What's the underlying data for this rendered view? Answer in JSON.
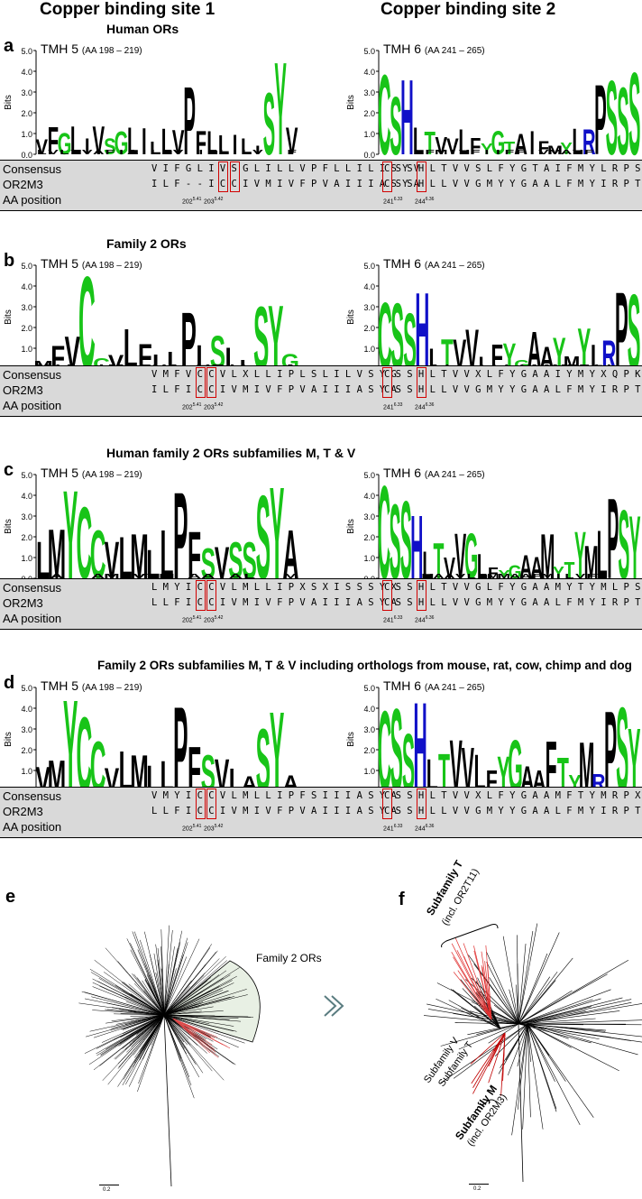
{
  "headers": {
    "left": "Copper binding site 1",
    "right": "Copper binding site 2"
  },
  "common": {
    "tmh5_label": "TMH 5",
    "tmh5_range": "(AA 198 – 219)",
    "tmh6_label": "TMH 6",
    "tmh6_range": "(AA 241 – 265)",
    "y_axis_title": "Bits",
    "y_ticks": [
      "5.0",
      "4.0",
      "3.0",
      "2.0",
      "1.0",
      "0.0"
    ],
    "row_labels": [
      "Consensus",
      "OR2M3",
      "AA position"
    ],
    "pos202": "202",
    "sup202": "5.41",
    "pos203": "203",
    "sup203": "5.42",
    "pos241": "241",
    "sup241": "6.33",
    "pos244": "244",
    "sup244": "6.36"
  },
  "panels": [
    {
      "letter": "a",
      "title": "Human ORs",
      "consensus5": "V I F G L I V S G L I L L V P F L L I L I S Y V",
      "or2m3_5": "I L F - - I C C I V M I V F P V A I I I A S Y A",
      "consensus6": "C S S H L T V V S L F Y G T A I F M Y L R P S S S",
      "or2m3_6": "C S S H L L V V G M Y Y G A A L F M Y I R P T S D",
      "tmh5_logo": "V F G L I V S G L I L L V P F L L I L I S Y V",
      "tmh6_logo": "C S H L T V V L F Y G T A I F M Y L R P S S S"
    },
    {
      "letter": "b",
      "title": "Family 2 ORs",
      "consensus5": "V M F V C C V L X L L I P L S L I L V S Y G",
      "or2m3_5": "I L F I C C I V M I V F P V A I I I A S Y A",
      "consensus6": "C S S H L T V V X L F Y G A A I Y M Y X Q P K S Y",
      "or2m3_6": "C S S H L L V V G M Y Y G A A L F M Y I R P T S D",
      "tmh5_logo": "M F V C C V L F L L P L S L L S Y G",
      "tmh6_logo": "C S S H L T V V L F Y G A A Y M Y L R P S"
    },
    {
      "letter": "c",
      "title": "Human family 2 ORs subfamilies M, T & V",
      "consensus5": "L M Y I C C V L M L L I P X S X I S S S Y X",
      "or2m3_5": "L L F I C C I V M I V F P V A I I I A S Y A",
      "consensus6": "C S S H L T V V G L F Y G A A M Y T Y M L P S S Y",
      "or2m3_6": "C S S H L L V V G M Y Y G A A L F M Y I R P T S D",
      "tmh5_logo": "L M Y C C V L M L L P F S V S S S Y A",
      "tmh6_logo": "C S S H L T V V G L F Y G A A M Y T Y M L P S Y"
    },
    {
      "letter": "d",
      "title": "Family 2 ORs subfamilies M, T & V including orthologs from mouse, rat, cow, chimp and dog",
      "consensus5": "V M Y I C C V L M L L I P F S I I I A S Y A",
      "or2m3_5": "L L F I C C I V M I V F P V A I I I A S Y A",
      "consensus6": "C S S H L T V V X L F Y G A A M F T Y M R P X S Y",
      "or2m3_6": "C S S H L L V V G M Y Y G A A L F M Y I R P T S D",
      "tmh5_logo": "V M Y C C V L M L L P F S V L A S Y A",
      "tmh6_logo": "C S S H L T V V L F Y G A A F T Y M R P S Y"
    }
  ],
  "trees": {
    "e_letter": "e",
    "f_letter": "f",
    "family2_label": "Family 2 ORs",
    "subfamily_t_bold": "Subfamily T",
    "subfamily_t_incl": "(incl. OR2T11)",
    "subfamily_v": "Subfamily V",
    "subfamily_t2": "Subfamily T",
    "subfamily_m_bold": "Subfamily M",
    "subfamily_m_incl": "(incl. OR2M3)",
    "scale_label": "0.2"
  },
  "colors": {
    "green": "#18c418",
    "blue": "#1010c8",
    "red": "#d10000",
    "black": "#000000",
    "grey": "#d9d9d9"
  }
}
